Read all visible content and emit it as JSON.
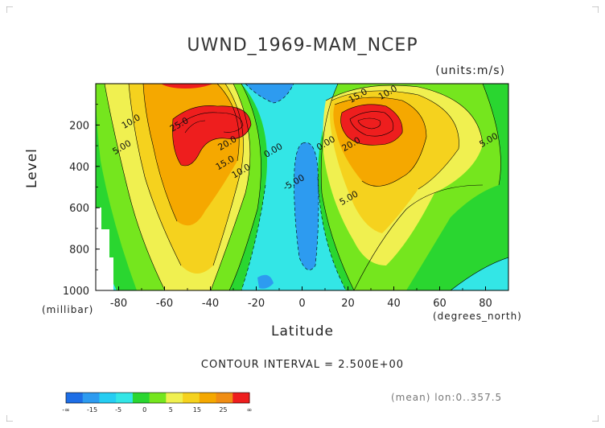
{
  "chart_data": {
    "type": "heatmap",
    "title": "UWND_1969-MAM_NCEP",
    "units": "(units:m/s)",
    "ylabel": "Level",
    "ylabel_units": "(millibar)",
    "xlabel": "Latitude",
    "xlabel_units": "(degrees_north)",
    "xlim": [
      -90,
      90
    ],
    "ylim": [
      1000,
      0
    ],
    "x_ticks": [
      -80,
      -60,
      -40,
      -20,
      0,
      20,
      40,
      60,
      80
    ],
    "y_ticks": [
      200,
      400,
      600,
      800,
      1000
    ],
    "contour_interval": "CONTOUR INTERVAL = 2.500E+00",
    "footer": "(mean) lon:0..357.5",
    "contour_labels": [
      {
        "text": "25.0",
        "lat": -53,
        "lev": 210
      },
      {
        "text": "20.0",
        "lat": -32,
        "lev": 300
      },
      {
        "text": "15.0",
        "lat": -33,
        "lev": 395
      },
      {
        "text": "10.0",
        "lat": -74,
        "lev": 195
      },
      {
        "text": "10.0",
        "lat": -26,
        "lev": 435
      },
      {
        "text": "5.00",
        "lat": -78,
        "lev": 320
      },
      {
        "text": "0.00",
        "lat": -12,
        "lev": 335
      },
      {
        "text": "-5.00",
        "lat": -3,
        "lev": 490
      },
      {
        "text": "0.00",
        "lat": 11,
        "lev": 300
      },
      {
        "text": "15.0",
        "lat": 25,
        "lev": 70
      },
      {
        "text": "10.0",
        "lat": 38,
        "lev": 55
      },
      {
        "text": "20.0",
        "lat": 22,
        "lev": 305
      },
      {
        "text": "5.00",
        "lat": 21,
        "lev": 565
      },
      {
        "text": "5.00",
        "lat": 82,
        "lev": 285
      }
    ],
    "colorbar": {
      "colors": [
        "#1e6ee6",
        "#2d9bf0",
        "#25cdf2",
        "#33e6e6",
        "#2ad630",
        "#75e61e",
        "#f0f050",
        "#f5d21e",
        "#f5a800",
        "#f08d14",
        "#ee1e1e"
      ],
      "tick_labels": [
        "-∞",
        "-15",
        "-5",
        "0",
        "5",
        "15",
        "25",
        "∞"
      ]
    }
  }
}
